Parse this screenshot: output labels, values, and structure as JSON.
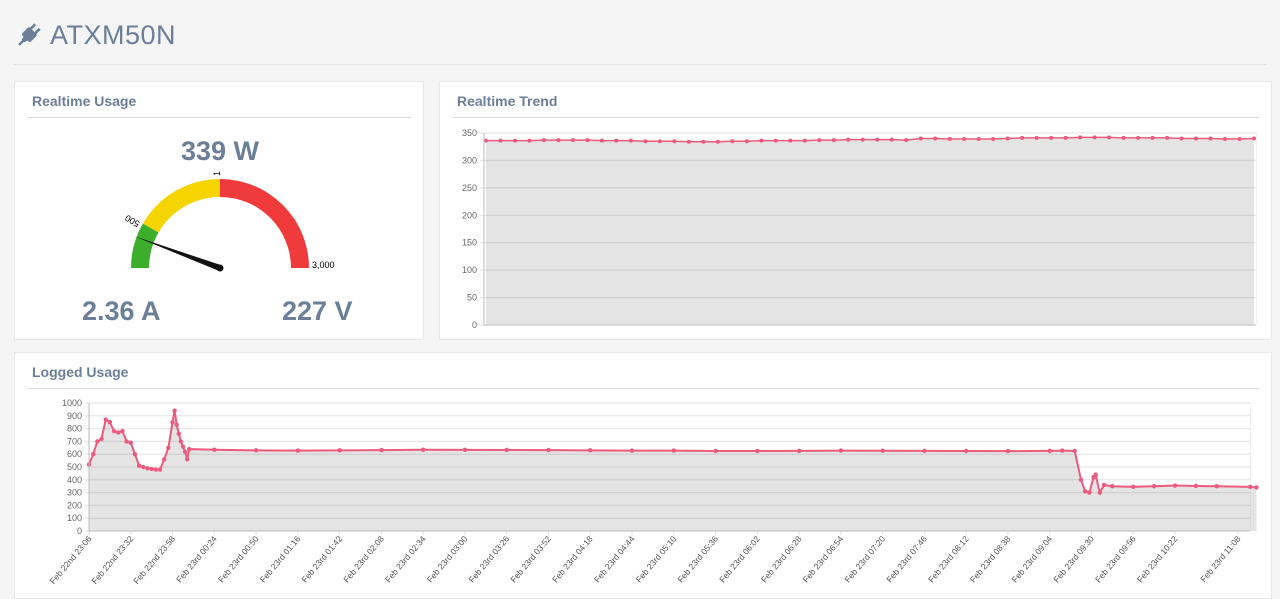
{
  "device": {
    "name": "ATXM50N",
    "icon": "plug-icon"
  },
  "realtime_usage": {
    "title": "Realtime Usage",
    "power": "339 W",
    "current": "2.36 A",
    "voltage": "227 V",
    "gauge": {
      "value": 339,
      "min": 0,
      "max": 3000,
      "ticks": [
        "500",
        "1,500",
        "3,000"
      ],
      "bands": [
        {
          "from": 0,
          "to": 500,
          "color": "#3dae2b"
        },
        {
          "from": 500,
          "to": 1500,
          "color": "#f5d400"
        },
        {
          "from": 1500,
          "to": 3000,
          "color": "#ef3b3b"
        }
      ]
    }
  },
  "realtime_trend": {
    "title": "Realtime Trend",
    "chart_data": {
      "type": "line",
      "ylim": [
        0,
        350
      ],
      "y_ticks": [
        "0",
        "50",
        "100",
        "150",
        "200",
        "250",
        "300",
        "350"
      ],
      "grid": true,
      "color": "#ec5a7e",
      "values": [
        336,
        336,
        336,
        336,
        337,
        337,
        337,
        337,
        336,
        336,
        336,
        335,
        335,
        335,
        334,
        334,
        334,
        335,
        335,
        336,
        336,
        336,
        336,
        337,
        337,
        338,
        338,
        338,
        338,
        337,
        340,
        340,
        339,
        339,
        339,
        339,
        340,
        341,
        341,
        341,
        341,
        342,
        342,
        342,
        341,
        341,
        341,
        341,
        340,
        340,
        340,
        339,
        339,
        340
      ]
    }
  },
  "logged_usage": {
    "title": "Logged Usage",
    "chart_data": {
      "type": "line",
      "ylim": [
        0,
        1000
      ],
      "y_ticks": [
        "0",
        "100",
        "200",
        "300",
        "400",
        "500",
        "600",
        "700",
        "800",
        "900",
        "1000"
      ],
      "grid": true,
      "color": "#ec5a7e",
      "x_labels": [
        "Feb 22nd 23:06",
        "Feb 22nd 23:32",
        "Feb 22nd 23:58",
        "Feb 23rd 00:24",
        "Feb 23rd 00:50",
        "Feb 23rd 01:16",
        "Feb 23rd 01:42",
        "Feb 23rd 02:08",
        "Feb 23rd 02:34",
        "Feb 23rd 03:00",
        "Feb 23rd 03:26",
        "Feb 23rd 03:52",
        "Feb 23rd 04:18",
        "Feb 23rd 04:44",
        "Feb 23rd 05:10",
        "Feb 23rd 05:36",
        "Feb 23rd 06:02",
        "Feb 23rd 06:28",
        "Feb 23rd 06:54",
        "Feb 23rd 07:20",
        "Feb 23rd 07:46",
        "Feb 23rd 08:12",
        "Feb 23rd 08:38",
        "Feb 23rd 09:04",
        "Feb 23rd 09:30",
        "Feb 23rd 09:56",
        "Feb 23rd 10:22",
        "Feb 23rd 11:08"
      ],
      "points": [
        [
          0,
          520
        ],
        [
          0.1,
          600
        ],
        [
          0.2,
          700
        ],
        [
          0.3,
          720
        ],
        [
          0.4,
          870
        ],
        [
          0.5,
          850
        ],
        [
          0.6,
          780
        ],
        [
          0.7,
          770
        ],
        [
          0.8,
          780
        ],
        [
          0.9,
          700
        ],
        [
          1.0,
          690
        ],
        [
          1.1,
          600
        ],
        [
          1.2,
          510
        ],
        [
          1.3,
          500
        ],
        [
          1.4,
          490
        ],
        [
          1.5,
          485
        ],
        [
          1.6,
          480
        ],
        [
          1.7,
          480
        ],
        [
          1.8,
          560
        ],
        [
          1.9,
          650
        ],
        [
          2.0,
          850
        ],
        [
          2.05,
          940
        ],
        [
          2.1,
          830
        ],
        [
          2.15,
          760
        ],
        [
          2.2,
          700
        ],
        [
          2.25,
          660
        ],
        [
          2.3,
          620
        ],
        [
          2.35,
          560
        ],
        [
          2.4,
          640
        ],
        [
          3,
          635
        ],
        [
          4,
          630
        ],
        [
          5,
          628
        ],
        [
          6,
          630
        ],
        [
          7,
          632
        ],
        [
          8,
          635
        ],
        [
          9,
          634
        ],
        [
          10,
          633
        ],
        [
          11,
          632
        ],
        [
          12,
          630
        ],
        [
          13,
          628
        ],
        [
          14,
          628
        ],
        [
          15,
          625
        ],
        [
          16,
          625
        ],
        [
          17,
          626
        ],
        [
          18,
          628
        ],
        [
          19,
          627
        ],
        [
          20,
          626
        ],
        [
          21,
          625
        ],
        [
          22,
          624
        ],
        [
          23,
          626
        ],
        [
          23.3,
          628
        ],
        [
          23.6,
          625
        ],
        [
          23.75,
          400
        ],
        [
          23.85,
          310
        ],
        [
          23.95,
          300
        ],
        [
          24.05,
          420
        ],
        [
          24.1,
          440
        ],
        [
          24.2,
          300
        ],
        [
          24.3,
          360
        ],
        [
          24.5,
          350
        ],
        [
          25,
          345
        ],
        [
          25.5,
          350
        ],
        [
          26,
          355
        ],
        [
          26.5,
          352
        ],
        [
          27,
          350
        ],
        [
          27.8,
          345
        ],
        [
          27.95,
          340
        ]
      ]
    }
  }
}
